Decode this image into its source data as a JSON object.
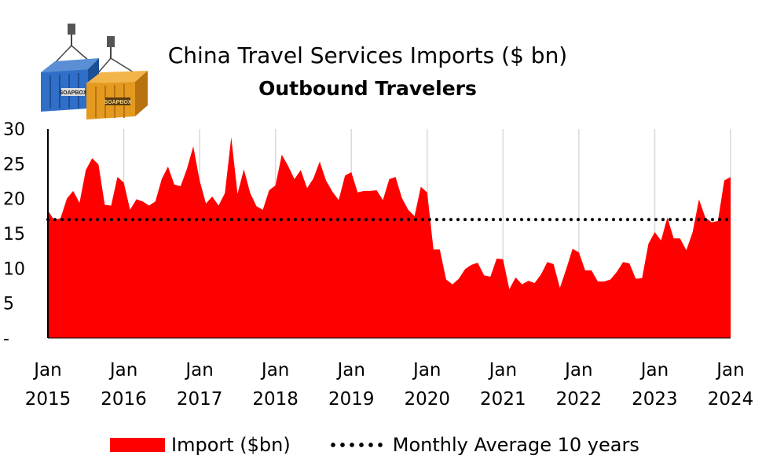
{
  "header": {
    "title": "China Travel Services Imports ($ bn)",
    "subtitle": "Outbound Travelers",
    "logo_text": [
      "SOAPBOX",
      "SOAPBOX"
    ]
  },
  "legend": {
    "import_label": "Import ($bn)",
    "average_label": "Monthly Average 10 years"
  },
  "colors": {
    "area": "#ff0000",
    "average": "#000000",
    "gridline": "#d9d9d9"
  },
  "chart_data": {
    "type": "area",
    "title": "China Travel Services Imports ($ bn)",
    "subtitle": "Outbound Travelers",
    "xlabel": "",
    "ylabel": "",
    "ylim": [
      0,
      30
    ],
    "y_ticks": [
      "-",
      "5",
      "10",
      "15",
      "20",
      "25",
      "30"
    ],
    "x_ticks": [
      {
        "month": "Jan",
        "year": "2015"
      },
      {
        "month": "Jan",
        "year": "2016"
      },
      {
        "month": "Jan",
        "year": "2017"
      },
      {
        "month": "Jan",
        "year": "2018"
      },
      {
        "month": "Jan",
        "year": "2019"
      },
      {
        "month": "Jan",
        "year": "2020"
      },
      {
        "month": "Jan",
        "year": "2021"
      },
      {
        "month": "Jan",
        "year": "2022"
      },
      {
        "month": "Jan",
        "year": "2023"
      },
      {
        "month": "Jan",
        "year": "2024"
      }
    ],
    "x_start": "2015-01",
    "x_end": "2024-02",
    "frequency": "monthly",
    "series": [
      {
        "name": "Import ($bn)",
        "type": "area",
        "values": [
          18.3,
          16.9,
          17.2,
          20.0,
          21.1,
          19.4,
          24.1,
          25.8,
          24.9,
          19.1,
          19.0,
          23.1,
          22.3,
          18.4,
          19.9,
          19.6,
          19.0,
          19.6,
          22.8,
          24.6,
          22.0,
          21.8,
          24.3,
          27.5,
          22.6,
          19.3,
          20.3,
          19.0,
          20.8,
          28.8,
          20.7,
          24.2,
          20.8,
          18.9,
          18.4,
          21.2,
          21.9,
          26.3,
          24.7,
          22.8,
          24.1,
          21.5,
          22.9,
          25.3,
          22.6,
          21.0,
          19.8,
          23.3,
          23.8,
          20.9,
          21.1,
          21.1,
          21.2,
          19.8,
          22.8,
          23.1,
          20.1,
          18.4,
          17.5,
          21.7,
          20.9,
          12.7,
          12.7,
          8.4,
          7.7,
          8.5,
          9.9,
          10.5,
          10.8,
          9.0,
          8.8,
          11.4,
          11.3,
          7.0,
          8.7,
          7.7,
          8.2,
          7.9,
          9.1,
          10.9,
          10.6,
          7.2,
          9.9,
          12.8,
          12.3,
          9.7,
          9.7,
          8.1,
          8.1,
          8.4,
          9.5,
          10.9,
          10.7,
          8.5,
          8.6,
          13.5,
          15.2,
          14.0,
          17.3,
          14.3,
          14.3,
          12.6,
          15.2,
          19.9,
          17.3,
          16.6,
          16.8,
          22.6,
          23.1
        ]
      },
      {
        "name": "Monthly Average 10 years",
        "type": "line",
        "style": "dotted",
        "value": 17.0
      }
    ],
    "grid": "vertical",
    "legend_position": "bottom"
  }
}
